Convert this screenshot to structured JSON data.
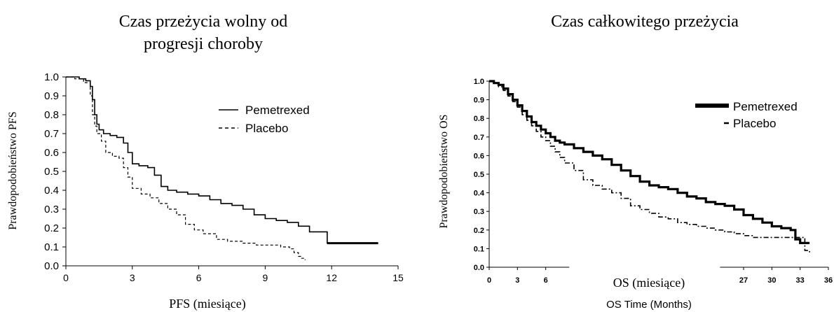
{
  "chart_data": [
    {
      "type": "line",
      "title": "Czas przeżycia wolny od progresji choroby",
      "title_lines": [
        "Czas przeżycia wolny od",
        "progresji choroby"
      ],
      "xlabel": "PFS (miesiące)",
      "ylabel": "Prawdopodobieństwo PFS",
      "xlim": [
        0,
        15
      ],
      "ylim": [
        0,
        1
      ],
      "xticks": [
        "0",
        "3",
        "6",
        "9",
        "12",
        "15"
      ],
      "yticks": [
        "0.0",
        "0.1",
        "0.2",
        "0.3",
        "0.4",
        "0.5",
        "0.6",
        "0.7",
        "0.8",
        "0.9",
        "1.0"
      ],
      "legend": "top-right",
      "grid": false,
      "series": [
        {
          "name": "Pemetrexed",
          "style": "solid",
          "x": [
            0,
            0.3,
            0.6,
            0.9,
            1.1,
            1.2,
            1.3,
            1.4,
            1.5,
            1.7,
            2.0,
            2.3,
            2.6,
            2.8,
            3.0,
            3.3,
            3.7,
            4.0,
            4.3,
            4.6,
            5.0,
            5.5,
            6.0,
            6.5,
            7.0,
            7.5,
            8.0,
            8.5,
            9.0,
            9.5,
            10.0,
            10.5,
            11.0,
            11.8,
            12.5,
            13.2,
            14.1
          ],
          "y": [
            1.0,
            1.0,
            0.99,
            0.98,
            0.95,
            0.88,
            0.8,
            0.75,
            0.72,
            0.7,
            0.69,
            0.68,
            0.65,
            0.6,
            0.54,
            0.53,
            0.52,
            0.48,
            0.42,
            0.4,
            0.39,
            0.38,
            0.37,
            0.35,
            0.33,
            0.32,
            0.3,
            0.27,
            0.25,
            0.24,
            0.23,
            0.21,
            0.18,
            0.12,
            0.12,
            0.12,
            0.12
          ]
        },
        {
          "name": "Placebo",
          "style": "dashed",
          "x": [
            0,
            0.4,
            0.8,
            1.1,
            1.2,
            1.3,
            1.4,
            1.6,
            1.8,
            2.1,
            2.4,
            2.6,
            2.8,
            3.0,
            3.4,
            3.8,
            4.2,
            4.6,
            5.0,
            5.4,
            5.8,
            6.2,
            6.8,
            7.3,
            8.0,
            8.6,
            9.2,
            9.7,
            10.1,
            10.3,
            10.5,
            10.6,
            10.8
          ],
          "y": [
            1.0,
            0.99,
            0.97,
            0.9,
            0.8,
            0.74,
            0.7,
            0.66,
            0.6,
            0.58,
            0.57,
            0.52,
            0.47,
            0.41,
            0.38,
            0.36,
            0.33,
            0.3,
            0.27,
            0.22,
            0.19,
            0.17,
            0.14,
            0.13,
            0.12,
            0.11,
            0.11,
            0.1,
            0.09,
            0.07,
            0.05,
            0.04,
            0.03
          ]
        }
      ]
    },
    {
      "type": "line",
      "title": "Czas całkowitego przeżycia",
      "xlabel": "OS (miesiące)",
      "xlabel_secondary": "OS Time (Months)",
      "ylabel": "Prawdopodobieństwo OS",
      "xlim": [
        0,
        36
      ],
      "ylim": [
        0,
        1
      ],
      "x_axis_break": [
        8.5,
        24.5
      ],
      "xticks": [
        "0",
        "3",
        "6",
        "27",
        "30",
        "33",
        "36"
      ],
      "yticks": [
        "0.0",
        "0.1",
        "0.2",
        "0.3",
        "0.4",
        "0.5",
        "0.6",
        "0.7",
        "0.8",
        "0.9",
        "1.0"
      ],
      "legend": "top-right",
      "grid": false,
      "series": [
        {
          "name": "Pemetrexed",
          "style": "thick",
          "x": [
            0,
            0.5,
            1,
            1.5,
            2,
            2.5,
            3,
            3.5,
            4,
            4.5,
            5,
            5.5,
            6,
            6.5,
            7,
            7.5,
            8,
            9,
            10,
            11,
            12,
            13,
            14,
            15,
            16,
            17,
            18,
            19,
            20,
            21,
            22,
            23,
            24,
            25,
            26,
            27,
            28,
            29,
            30,
            31,
            32,
            32.5,
            33,
            33.5,
            34
          ],
          "y": [
            1.0,
            0.99,
            0.98,
            0.96,
            0.93,
            0.9,
            0.87,
            0.84,
            0.81,
            0.78,
            0.76,
            0.74,
            0.72,
            0.7,
            0.68,
            0.67,
            0.66,
            0.64,
            0.62,
            0.6,
            0.58,
            0.55,
            0.52,
            0.49,
            0.46,
            0.44,
            0.43,
            0.42,
            0.4,
            0.38,
            0.37,
            0.35,
            0.34,
            0.33,
            0.31,
            0.28,
            0.26,
            0.24,
            0.22,
            0.21,
            0.2,
            0.15,
            0.13,
            0.13,
            0.13
          ]
        },
        {
          "name": "Placebo",
          "style": "dash-dot",
          "x": [
            0,
            0.5,
            1,
            1.5,
            2,
            2.5,
            3,
            3.5,
            4,
            4.5,
            5,
            5.5,
            6,
            6.5,
            7,
            7.5,
            8,
            9,
            10,
            11,
            12,
            13,
            14,
            15,
            16,
            17,
            18,
            19,
            20,
            21,
            22,
            23,
            24,
            25,
            26,
            27,
            28,
            29,
            30,
            31,
            32,
            33,
            33.5,
            34
          ],
          "y": [
            1.0,
            0.99,
            0.97,
            0.95,
            0.92,
            0.89,
            0.86,
            0.82,
            0.79,
            0.76,
            0.73,
            0.7,
            0.68,
            0.65,
            0.62,
            0.59,
            0.56,
            0.52,
            0.47,
            0.44,
            0.42,
            0.4,
            0.37,
            0.33,
            0.31,
            0.29,
            0.27,
            0.26,
            0.24,
            0.23,
            0.22,
            0.21,
            0.2,
            0.19,
            0.18,
            0.17,
            0.16,
            0.16,
            0.16,
            0.16,
            0.16,
            0.16,
            0.09,
            0.08
          ]
        }
      ]
    }
  ]
}
